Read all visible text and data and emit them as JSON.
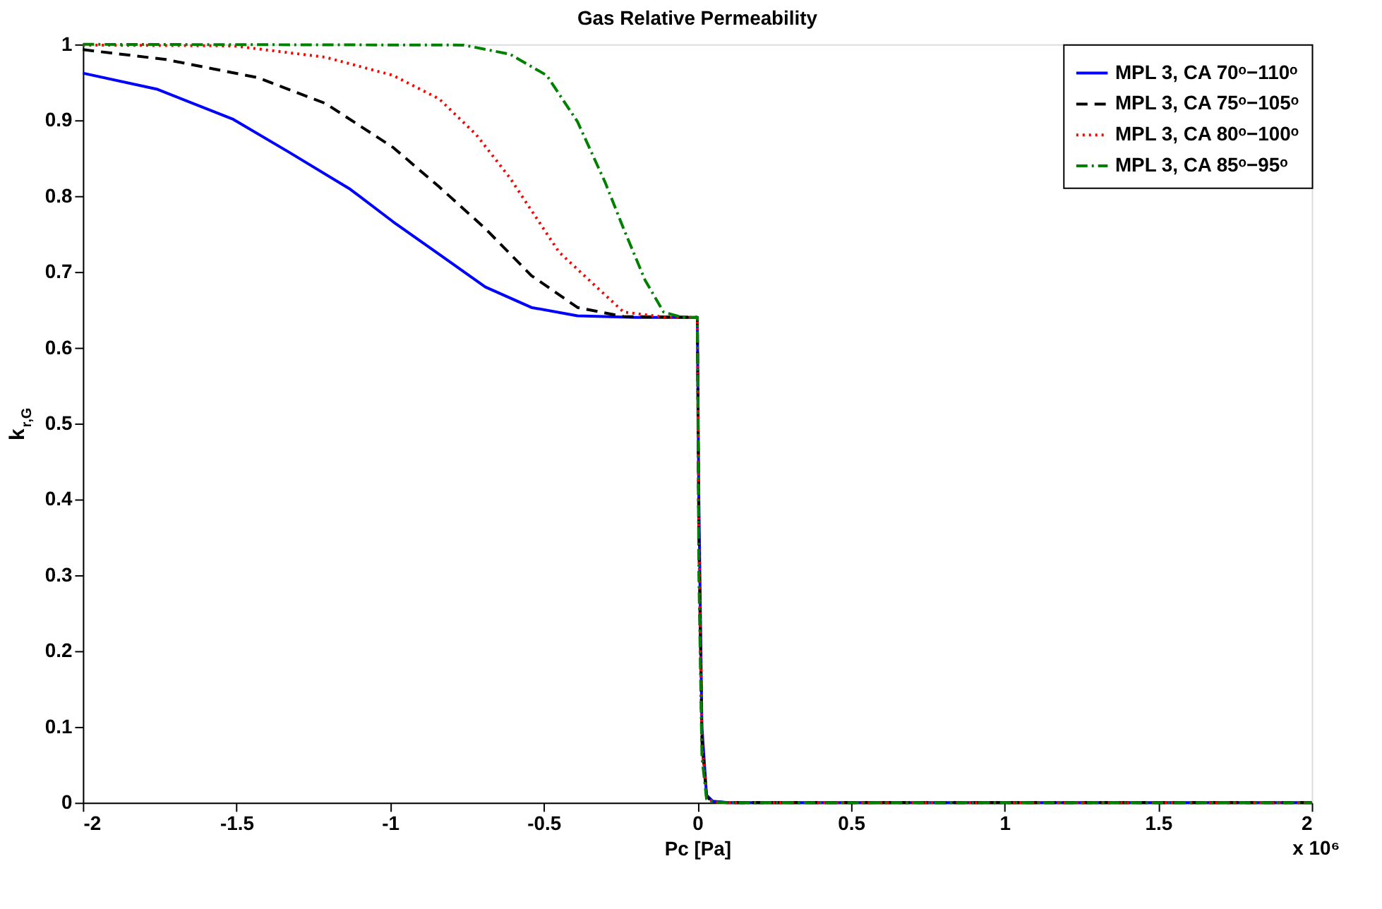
{
  "chart_data": {
    "type": "line",
    "title": "Gas Relative Permeability",
    "xlabel": "Pc [Pa]",
    "ylabel": "k$_{r,G}$",
    "annotations": [
      "x 10⁶"
    ],
    "xlim": [
      -2,
      2
    ],
    "xticks": [
      -2,
      -1.5,
      -1,
      -0.5,
      0,
      0.5,
      1,
      1.5,
      2
    ],
    "ylim": [
      0,
      1
    ],
    "yticks": [
      0,
      0.1,
      0.2,
      0.3,
      0.4,
      0.5,
      0.6,
      0.7,
      0.8,
      0.9,
      1
    ],
    "grid": false,
    "legend": "top right",
    "marker": "none",
    "series": [
      {
        "name": "MPL 3, CA 70ᵒ−110ᵒ",
        "color": "#0000ff",
        "line_style": "solid",
        "x": [
          -2,
          -1.76,
          -1.51,
          -1.33,
          -1.13,
          -0.99,
          -0.84,
          -0.69,
          -0.54,
          -0.39,
          -0.2,
          0,
          0.005,
          0.015,
          0.03,
          0.05,
          0.1,
          2
        ],
        "values": [
          0.962,
          0.941,
          0.901,
          0.858,
          0.809,
          0.766,
          0.723,
          0.68,
          0.653,
          0.642,
          0.64,
          0.64,
          0.4,
          0.1,
          0.01,
          0.002,
          0,
          0
        ]
      },
      {
        "name": "MPL 3, CA 75ᵒ−105ᵒ",
        "color": "#000000",
        "line_style": "dashed",
        "x": [
          -2,
          -1.73,
          -1.43,
          -1.21,
          -0.99,
          -0.84,
          -0.69,
          -0.54,
          -0.39,
          -0.24,
          0,
          0.005,
          0.015,
          0.03,
          0.05,
          0.1,
          2
        ],
        "values": [
          0.993,
          0.98,
          0.956,
          0.922,
          0.864,
          0.812,
          0.757,
          0.695,
          0.653,
          0.641,
          0.64,
          0.35,
          0.08,
          0.008,
          0.001,
          0,
          0
        ]
      },
      {
        "name": "MPL 3, CA 80ᵒ−100ᵒ",
        "color": "#ff0000",
        "line_style": "dotted",
        "x": [
          -2,
          -1.51,
          -1.21,
          -0.99,
          -0.84,
          -0.72,
          -0.61,
          -0.54,
          -0.45,
          -0.32,
          -0.24,
          -0.1,
          0,
          0.005,
          0.015,
          0.03,
          0.05,
          0.1,
          2
        ],
        "values": [
          0.999,
          0.998,
          0.983,
          0.959,
          0.928,
          0.881,
          0.824,
          0.781,
          0.726,
          0.677,
          0.647,
          0.64,
          0.64,
          0.35,
          0.08,
          0.008,
          0.001,
          0,
          0
        ]
      },
      {
        "name": "MPL 3, CA 85ᵒ−95ᵒ",
        "color": "#008000",
        "line_style": "dashdot",
        "x": [
          -2,
          -0.76,
          -0.61,
          -0.49,
          -0.39,
          -0.3,
          -0.24,
          -0.17,
          -0.11,
          -0.05,
          0,
          0.005,
          0.015,
          0.03,
          0.05,
          0.1,
          2
        ],
        "values": [
          1,
          0.999,
          0.987,
          0.959,
          0.898,
          0.818,
          0.757,
          0.689,
          0.647,
          0.64,
          0.64,
          0.3,
          0.06,
          0.005,
          0.001,
          0,
          0
        ]
      }
    ]
  }
}
